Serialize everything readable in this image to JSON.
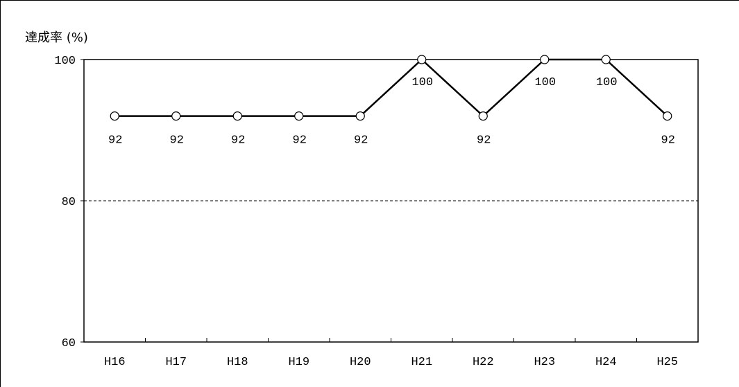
{
  "chart_data": {
    "type": "line",
    "ylabel": "達成率 (%)",
    "xlabel": "",
    "title": "",
    "categories": [
      "H16",
      "H17",
      "H18",
      "H19",
      "H20",
      "H21",
      "H22",
      "H23",
      "H24",
      "H25"
    ],
    "series": [
      {
        "values": [
          92,
          92,
          92,
          92,
          92,
          100,
          92,
          100,
          100,
          92
        ]
      }
    ],
    "ylim": [
      60,
      100
    ],
    "yticks": [
      "60",
      "80",
      "100"
    ],
    "reference_line": {
      "value": 80,
      "style": "dashed"
    },
    "data_labels": [
      "92",
      "92",
      "92",
      "92",
      "92",
      "100",
      "92",
      "100",
      "100",
      "92"
    ],
    "colors": {
      "line": "#000000",
      "marker_fill": "#ffffff",
      "grid": "#000000"
    }
  }
}
